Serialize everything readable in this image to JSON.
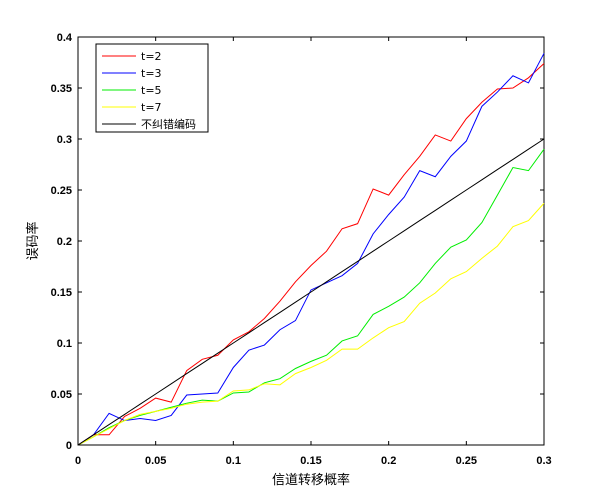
{
  "chart_data": {
    "type": "line",
    "xlabel": "信道转移概率",
    "ylabel": "误码率",
    "xlim": [
      0,
      0.3
    ],
    "ylim": [
      0,
      0.4
    ],
    "xticks": [
      "0",
      "0.05",
      "0.1",
      "0.15",
      "0.2",
      "0.25",
      "0.3"
    ],
    "yticks": [
      "0",
      "0.05",
      "0.1",
      "0.15",
      "0.2",
      "0.25",
      "0.3",
      "0.35",
      "0.4"
    ],
    "grid": false,
    "legend_position": "top-left",
    "x": [
      0,
      0.01,
      0.02,
      0.03,
      0.04,
      0.05,
      0.06,
      0.07,
      0.08,
      0.09,
      0.1,
      0.11,
      0.12,
      0.13,
      0.14,
      0.15,
      0.16,
      0.17,
      0.18,
      0.19,
      0.2,
      0.21,
      0.22,
      0.23,
      0.24,
      0.25,
      0.26,
      0.27,
      0.28,
      0.29,
      0.3
    ],
    "series": [
      {
        "name": "t=2",
        "color": "#ff0000",
        "values": [
          0,
          0.01,
          0.01,
          0.028,
          0.036,
          0.046,
          0.042,
          0.073,
          0.084,
          0.088,
          0.103,
          0.111,
          0.124,
          0.141,
          0.16,
          0.176,
          0.19,
          0.212,
          0.217,
          0.251,
          0.245,
          0.265,
          0.283,
          0.304,
          0.298,
          0.32,
          0.336,
          0.349,
          0.35,
          0.36,
          0.374
        ]
      },
      {
        "name": "t=3",
        "color": "#0000ff",
        "values": [
          0,
          0.01,
          0.031,
          0.024,
          0.026,
          0.024,
          0.029,
          0.049,
          0.05,
          0.051,
          0.076,
          0.093,
          0.098,
          0.113,
          0.122,
          0.152,
          0.159,
          0.166,
          0.178,
          0.207,
          0.226,
          0.243,
          0.269,
          0.263,
          0.283,
          0.298,
          0.332,
          0.346,
          0.362,
          0.355,
          0.384
        ]
      },
      {
        "name": "t=5",
        "color": "#00ee00",
        "values": [
          0,
          0.008,
          0.017,
          0.024,
          0.029,
          0.033,
          0.037,
          0.041,
          0.044,
          0.043,
          0.051,
          0.052,
          0.061,
          0.065,
          0.075,
          0.082,
          0.088,
          0.102,
          0.107,
          0.128,
          0.136,
          0.145,
          0.159,
          0.178,
          0.194,
          0.201,
          0.218,
          0.245,
          0.272,
          0.269,
          0.29
        ]
      },
      {
        "name": "t=7",
        "color": "#ffff00",
        "values": [
          0,
          0.008,
          0.016,
          0.024,
          0.03,
          0.033,
          0.036,
          0.04,
          0.042,
          0.043,
          0.053,
          0.054,
          0.06,
          0.059,
          0.07,
          0.076,
          0.083,
          0.094,
          0.094,
          0.105,
          0.115,
          0.121,
          0.139,
          0.149,
          0.163,
          0.17,
          0.183,
          0.195,
          0.214,
          0.22,
          0.237
        ]
      },
      {
        "name": "不纠错编码",
        "color": "#000000",
        "values": [
          0,
          0.01,
          0.02,
          0.03,
          0.04,
          0.05,
          0.06,
          0.07,
          0.08,
          0.09,
          0.1,
          0.11,
          0.12,
          0.13,
          0.14,
          0.15,
          0.16,
          0.17,
          0.18,
          0.19,
          0.2,
          0.21,
          0.22,
          0.23,
          0.24,
          0.25,
          0.26,
          0.27,
          0.28,
          0.29,
          0.3
        ]
      }
    ]
  }
}
